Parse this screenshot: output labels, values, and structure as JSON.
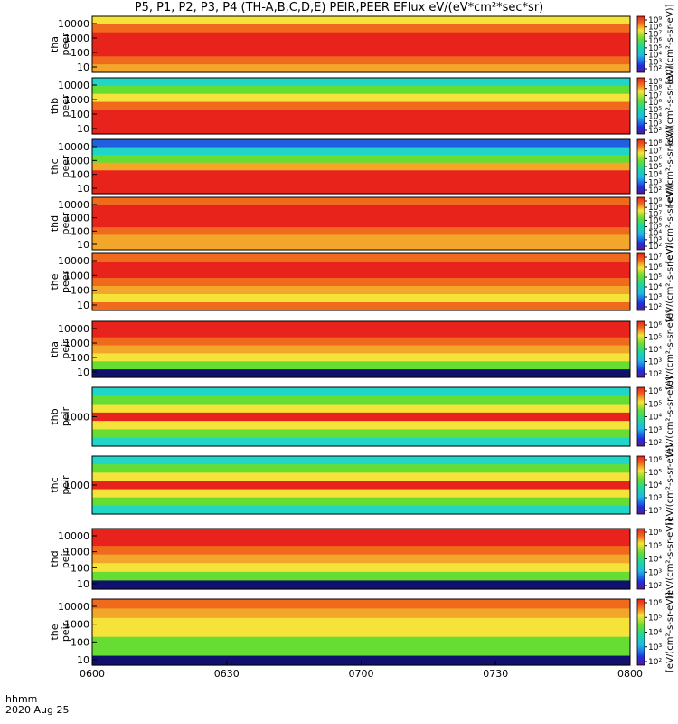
{
  "title": "P5, P1, P2, P3, P4 (TH-A,B,C,D,E) PEIR,PEER EFlux eV/(eV*cm²*sec*sr)",
  "footer": {
    "time_label": "hhmm",
    "date_label": "2020 Aug 25"
  },
  "colors": {
    "red": "#e8231c",
    "orange": "#f06a1e",
    "yellow_orange": "#f3a72a",
    "yellow": "#f6e33a",
    "green": "#66dd33",
    "cyan": "#1fd6c9",
    "blue": "#1f5fe0",
    "navy": "#10106e",
    "black": "#000000"
  },
  "colorbar_label": "[eV/(cm²-s-sr-eV)]",
  "chart_data": {
    "type": "heatmap",
    "x_ticks": [
      "0600",
      "0630",
      "0700",
      "0730",
      "0800"
    ],
    "x_range": [
      "0600",
      "0800"
    ],
    "panels": [
      {
        "label_top": "tha",
        "label_bottom": "peer",
        "y_ticks": [
          "10000",
          "1000",
          "100",
          "10"
        ],
        "cbar_ticks": [
          "10⁹",
          "10⁸",
          "10⁷",
          "10⁶",
          "10⁵",
          "10⁴",
          "10³",
          "10²"
        ]
      },
      {
        "label_top": "thb",
        "label_bottom": "peer",
        "y_ticks": [
          "10000",
          "1000",
          "100",
          "10"
        ],
        "cbar_ticks": [
          "10⁹",
          "10⁸",
          "10⁷",
          "10⁶",
          "10⁵",
          "10⁴",
          "10³",
          "10²"
        ]
      },
      {
        "label_top": "thc",
        "label_bottom": "peer",
        "y_ticks": [
          "10000",
          "1000",
          "100",
          "10"
        ],
        "cbar_ticks": [
          "10⁸",
          "10⁷",
          "10⁶",
          "10⁵",
          "10⁴",
          "10³",
          "10²"
        ]
      },
      {
        "label_top": "thd",
        "label_bottom": "peer",
        "y_ticks": [
          "10000",
          "1000",
          "100",
          "10"
        ],
        "cbar_ticks": [
          "10⁹",
          "10⁸",
          "10⁷",
          "10⁶",
          "10⁵",
          "10⁴",
          "10³",
          "10²"
        ]
      },
      {
        "label_top": "the",
        "label_bottom": "peer",
        "y_ticks": [
          "10000",
          "1000",
          "100",
          "10"
        ],
        "cbar_ticks": [
          "10⁷",
          "10⁶",
          "10⁵",
          "10⁴",
          "10³",
          "10²"
        ]
      },
      {
        "label_top": "tha",
        "label_bottom": "peir",
        "y_ticks": [
          "10000",
          "1000",
          "100",
          "10"
        ],
        "cbar_ticks": [
          "10⁶",
          "10⁵",
          "10⁴",
          "10³",
          "10²"
        ]
      },
      {
        "label_top": "thb",
        "label_bottom": "peir",
        "y_ticks": [
          "1000"
        ],
        "cbar_ticks": [
          "10⁶",
          "10⁵",
          "10⁴",
          "10³",
          "10²"
        ]
      },
      {
        "label_top": "thc",
        "label_bottom": "peir",
        "y_ticks": [
          "1000"
        ],
        "cbar_ticks": [
          "10⁶",
          "10⁵",
          "10⁴",
          "10³",
          "10²"
        ]
      },
      {
        "label_top": "thd",
        "label_bottom": "peir",
        "y_ticks": [
          "10000",
          "1000",
          "100",
          "10"
        ],
        "cbar_ticks": [
          "10⁶",
          "10⁵",
          "10⁴",
          "10³",
          "10²"
        ]
      },
      {
        "label_top": "the",
        "label_bottom": "peir",
        "y_ticks": [
          "10000",
          "1000",
          "100",
          "10"
        ],
        "cbar_ticks": [
          "10⁶",
          "10⁵",
          "10⁴",
          "10³",
          "10²"
        ]
      }
    ]
  }
}
